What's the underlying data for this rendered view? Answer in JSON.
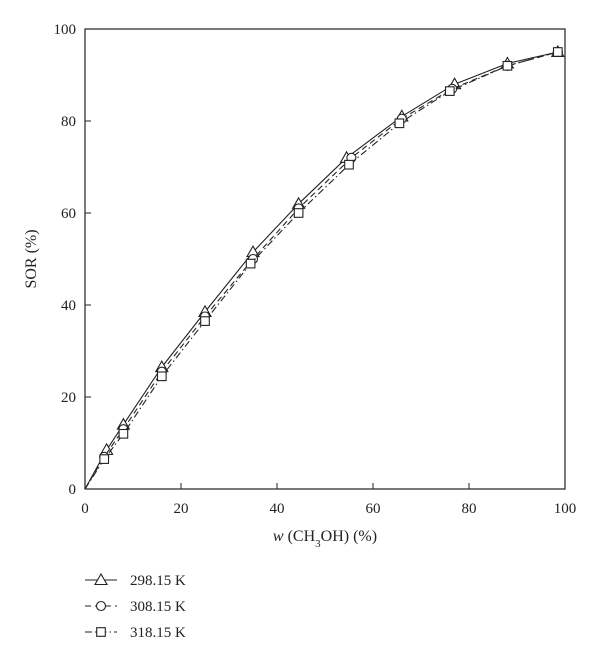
{
  "chart_data": {
    "type": "line",
    "title": "",
    "xlabel": {
      "italic": "w",
      "pre": " (CH",
      "sub": "3",
      "post": "OH) (%)"
    },
    "ylabel": "SOR (%)",
    "xlim": [
      0,
      100
    ],
    "ylim": [
      0,
      100
    ],
    "xticks": [
      0,
      20,
      40,
      60,
      80,
      100
    ],
    "yticks": [
      0,
      20,
      40,
      60,
      80,
      100
    ],
    "grid": false,
    "legend_position": "below-left",
    "series": [
      {
        "name": "298.15 K",
        "marker": "triangle",
        "dash": "solid",
        "x": [
          0,
          4.5,
          8,
          16,
          25,
          35,
          44.5,
          54.5,
          66,
          77,
          88,
          98.5
        ],
        "y": [
          0,
          8.5,
          14,
          26.5,
          38.5,
          51.5,
          62,
          72,
          81,
          88,
          92.5,
          95
        ]
      },
      {
        "name": "308.15 K",
        "marker": "circle",
        "dash": "dash",
        "x": [
          0,
          4,
          8,
          16,
          25,
          35,
          44.5,
          55.5,
          66,
          76.5,
          88,
          98.5
        ],
        "y": [
          0,
          7,
          13,
          25.5,
          37.5,
          50,
          61,
          72,
          80.5,
          87,
          92,
          95
        ]
      },
      {
        "name": "318.15 K",
        "marker": "square",
        "dash": "dashdot",
        "x": [
          0,
          4,
          8,
          16,
          25,
          34.5,
          44.5,
          55,
          65.5,
          76,
          88,
          98.5
        ],
        "y": [
          0,
          6.5,
          12,
          24.5,
          36.5,
          49,
          60,
          70.5,
          79.5,
          86.5,
          92,
          95
        ]
      }
    ]
  }
}
